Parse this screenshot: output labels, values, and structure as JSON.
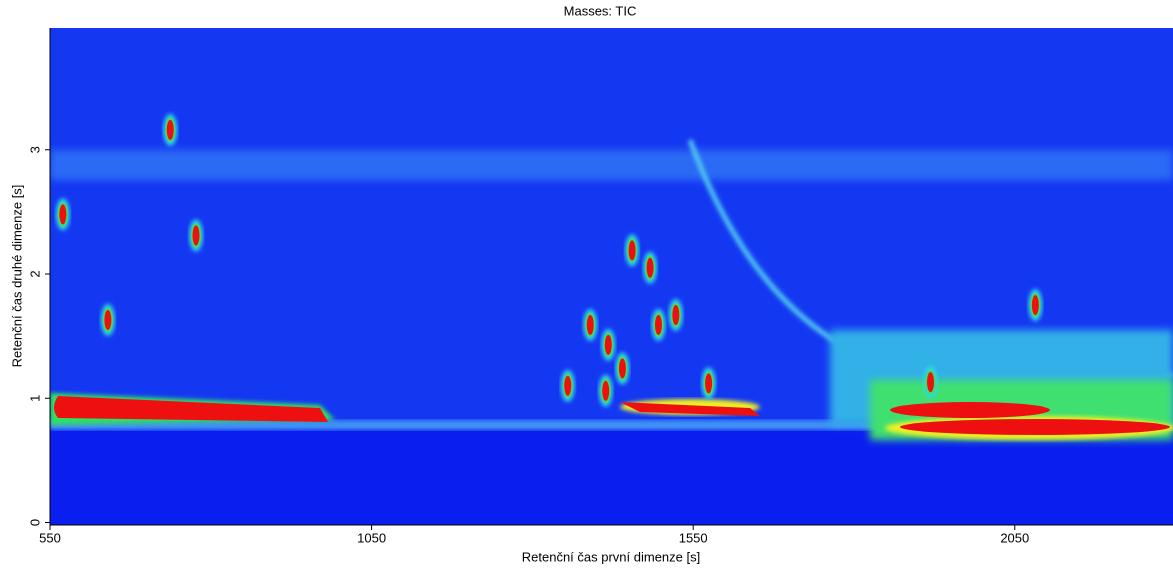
{
  "chart_data": {
    "type": "heatmap",
    "title": "Masses:  TIC",
    "x_label": "Retenční čas první dimenze [s]",
    "y_label": "Retenční čas druhé dimenze [s]",
    "xlim": [
      550,
      2296
    ],
    "ylim": [
      -0.02,
      3.98
    ],
    "xticks": [
      550,
      1050,
      1550,
      2050
    ],
    "yticks": [
      0,
      1,
      2,
      3
    ],
    "x": [
      570,
      737,
      777,
      640,
      1455,
      1483,
      1496,
      1523,
      1390,
      1418,
      1355,
      1919,
      2082,
      1440,
      1414,
      1574
    ],
    "y": [
      2.48,
      3.16,
      2.31,
      1.63,
      2.19,
      2.05,
      1.59,
      1.67,
      1.59,
      1.43,
      1.1,
      1.13,
      1.75,
      1.24,
      1.06,
      1.12
    ]
  }
}
